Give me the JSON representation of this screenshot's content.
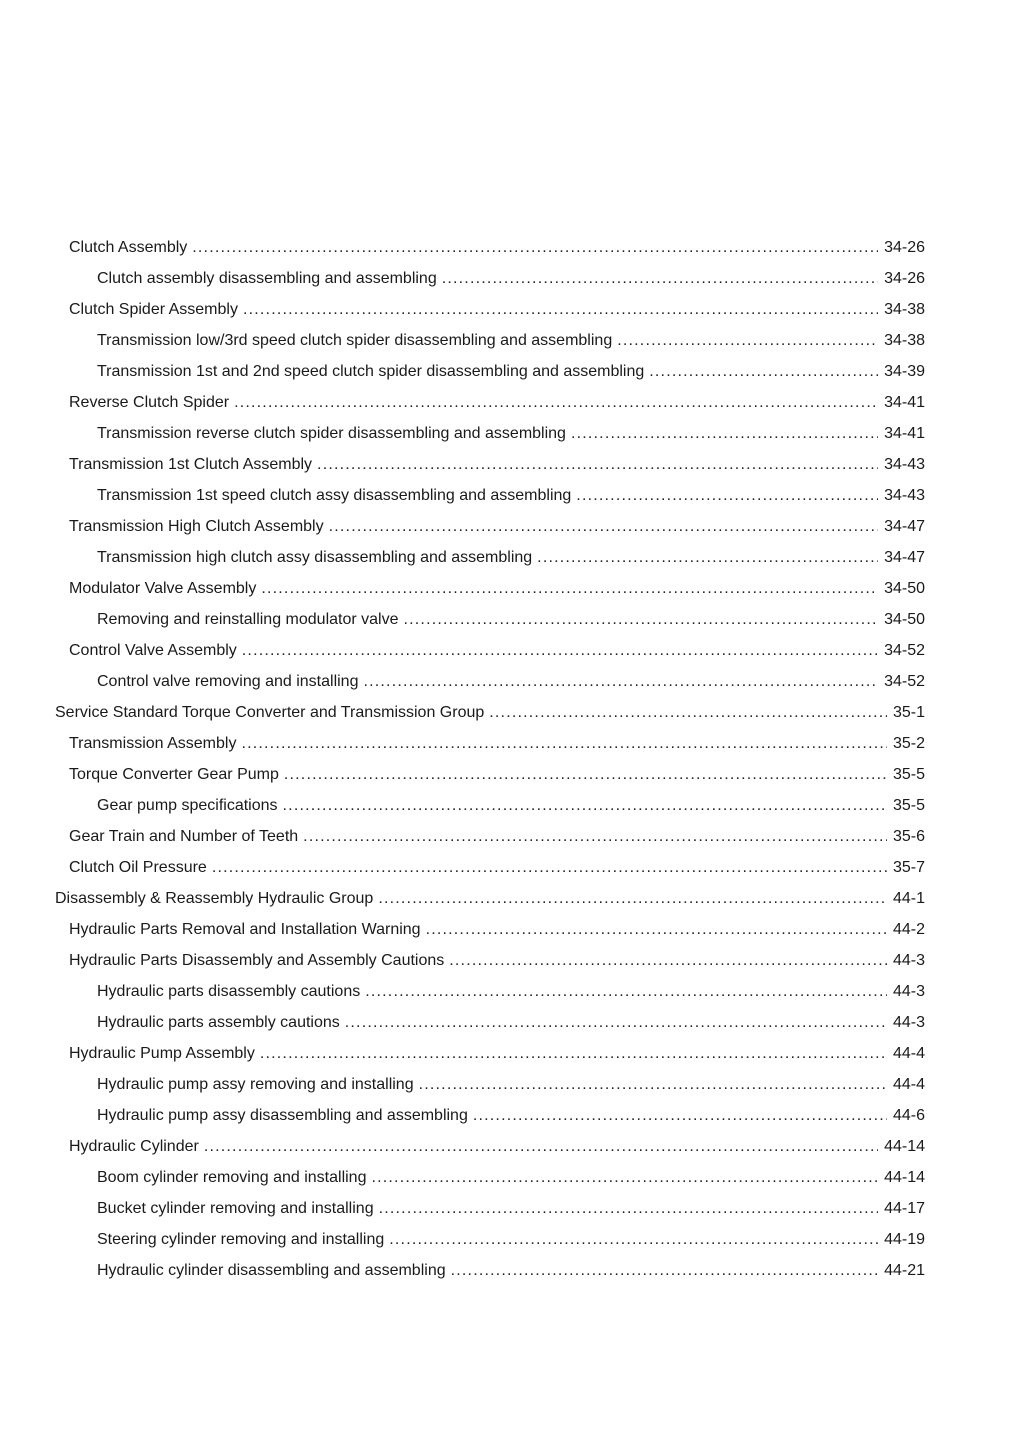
{
  "page": {
    "background": "#ffffff",
    "text_color": "#1a1a1a"
  },
  "toc": {
    "entries": [
      {
        "level": 1,
        "label": "Clutch Assembly",
        "page": "34-26"
      },
      {
        "level": 2,
        "label": "Clutch assembly disassembling and assembling",
        "page": "34-26"
      },
      {
        "level": 1,
        "label": "Clutch Spider Assembly",
        "page": "34-38"
      },
      {
        "level": 2,
        "label": "Transmission low/3rd speed clutch spider disassembling and assembling",
        "page": "34-38"
      },
      {
        "level": 2,
        "label": "Transmission 1st and 2nd speed clutch spider disassembling and assembling",
        "page": "34-39"
      },
      {
        "level": 1,
        "label": "Reverse Clutch Spider",
        "page": "34-41"
      },
      {
        "level": 2,
        "label": "Transmission reverse clutch spider disassembling and assembling",
        "page": "34-41"
      },
      {
        "level": 1,
        "label": "Transmission 1st Clutch Assembly",
        "page": "34-43"
      },
      {
        "level": 2,
        "label": "Transmission 1st speed clutch assy disassembling and assembling",
        "page": "34-43"
      },
      {
        "level": 1,
        "label": "Transmission High Clutch Assembly",
        "page": "34-47"
      },
      {
        "level": 2,
        "label": "Transmission high clutch assy disassembling and assembling",
        "page": "34-47"
      },
      {
        "level": 1,
        "label": "Modulator Valve Assembly",
        "page": "34-50"
      },
      {
        "level": 2,
        "label": "Removing and reinstalling modulator valve",
        "page": "34-50"
      },
      {
        "level": 1,
        "label": "Control Valve Assembly",
        "page": "34-52"
      },
      {
        "level": 2,
        "label": "Control valve removing and installing",
        "page": "34-52"
      },
      {
        "level": 0,
        "label": "Service Standard Torque Converter and Transmission Group",
        "page": "35-1"
      },
      {
        "level": 1,
        "label": "Transmission Assembly",
        "page": "35-2"
      },
      {
        "level": 1,
        "label": "Torque Converter Gear Pump",
        "page": "35-5"
      },
      {
        "level": 2,
        "label": "Gear pump specifications",
        "page": "35-5"
      },
      {
        "level": 1,
        "label": "Gear Train and Number of Teeth",
        "page": "35-6"
      },
      {
        "level": 1,
        "label": "Clutch Oil Pressure",
        "page": "35-7"
      },
      {
        "level": 0,
        "label": "Disassembly & Reassembly Hydraulic Group",
        "page": "44-1"
      },
      {
        "level": 1,
        "label": "Hydraulic Parts Removal and Installation Warning",
        "page": "44-2"
      },
      {
        "level": 1,
        "label": "Hydraulic Parts Disassembly and Assembly Cautions",
        "page": "44-3"
      },
      {
        "level": 2,
        "label": "Hydraulic parts disassembly cautions",
        "page": "44-3"
      },
      {
        "level": 2,
        "label": "Hydraulic parts assembly cautions",
        "page": "44-3"
      },
      {
        "level": 1,
        "label": "Hydraulic Pump Assembly",
        "page": "44-4"
      },
      {
        "level": 2,
        "label": "Hydraulic pump assy removing and installing",
        "page": "44-4"
      },
      {
        "level": 2,
        "label": "Hydraulic pump assy disassembling and assembling",
        "page": "44-6"
      },
      {
        "level": 1,
        "label": "Hydraulic Cylinder",
        "page": "44-14"
      },
      {
        "level": 2,
        "label": "Boom cylinder removing and installing",
        "page": "44-14"
      },
      {
        "level": 2,
        "label": "Bucket cylinder removing and installing",
        "page": "44-17"
      },
      {
        "level": 2,
        "label": "Steering cylinder removing and installing",
        "page": "44-19"
      },
      {
        "level": 2,
        "label": "Hydraulic cylinder disassembling and assembling",
        "page": "44-21"
      }
    ]
  }
}
